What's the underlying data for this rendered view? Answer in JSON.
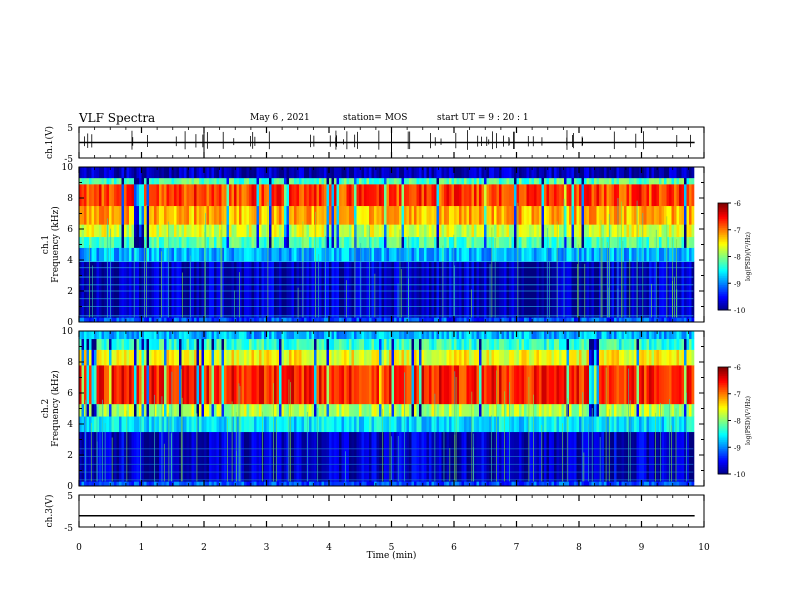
{
  "header": {
    "title": "VLF Spectra",
    "date": "May 6 , 2021",
    "station": "station= MOS",
    "start": "start UT = 9 : 20 : 1"
  },
  "chart_data": [
    {
      "type": "line",
      "name": "ch1-voltage",
      "ylabel": "ch.1(V)",
      "ylim": [
        -5,
        5
      ],
      "yticks": [
        "5",
        "-5"
      ],
      "x": [
        0,
        10
      ],
      "y": [
        0,
        0
      ],
      "color": "#000000"
    },
    {
      "type": "heatmap",
      "name": "ch1-spectrogram",
      "ylabel": "ch.1\nFrequency (kHz)",
      "ylim": [
        0,
        10
      ],
      "yticks": [
        "0",
        "2",
        "4",
        "6",
        "8",
        "10"
      ],
      "xlim": [
        0,
        10
      ],
      "x_end": 9.83,
      "bands": [
        {
          "f0": 0.0,
          "f1": 0.3,
          "level": 0.2
        },
        {
          "f0": 0.3,
          "f1": 3.9,
          "level": 0.06
        },
        {
          "f0": 3.9,
          "f1": 4.8,
          "level": 0.3
        },
        {
          "f0": 4.8,
          "f1": 5.5,
          "level": 0.45
        },
        {
          "f0": 5.5,
          "f1": 6.3,
          "level": 0.58
        },
        {
          "f0": 6.3,
          "f1": 7.5,
          "level": 0.7
        },
        {
          "f0": 7.5,
          "f1": 8.9,
          "level": 0.82
        },
        {
          "f0": 8.9,
          "f1": 9.3,
          "level": 0.45
        },
        {
          "f0": 9.3,
          "f1": 10.0,
          "level": 0.05
        }
      ],
      "colorbar": {
        "min": -10,
        "max": -6,
        "ticks": [
          "-6",
          "-7",
          "-8",
          "-9",
          "-10"
        ],
        "label": "log(PSD)(V²/Hz)"
      }
    },
    {
      "type": "heatmap",
      "name": "ch2-spectrogram",
      "ylabel": "ch.2\nFrequency (kHz)",
      "ylim": [
        0,
        10
      ],
      "yticks": [
        "0",
        "2",
        "4",
        "6",
        "8",
        "10"
      ],
      "xlim": [
        0,
        10
      ],
      "x_end": 9.83,
      "bands": [
        {
          "f0": 0.0,
          "f1": 0.3,
          "level": 0.2
        },
        {
          "f0": 0.3,
          "f1": 3.5,
          "level": 0.07
        },
        {
          "f0": 3.5,
          "f1": 4.5,
          "level": 0.35
        },
        {
          "f0": 4.5,
          "f1": 5.3,
          "level": 0.55
        },
        {
          "f0": 5.3,
          "f1": 7.8,
          "level": 0.85
        },
        {
          "f0": 7.8,
          "f1": 8.8,
          "level": 0.62
        },
        {
          "f0": 8.8,
          "f1": 9.5,
          "level": 0.42
        },
        {
          "f0": 9.5,
          "f1": 10.0,
          "level": 0.3
        }
      ],
      "colorbar": {
        "min": -10,
        "max": -6,
        "ticks": [
          "-6",
          "-7",
          "-8",
          "-9",
          "-10"
        ],
        "label": "log(PSD)(V²/Hz)"
      }
    },
    {
      "type": "line",
      "name": "ch3-voltage",
      "ylabel": "ch.3(V)",
      "ylim": [
        -5,
        5
      ],
      "yticks": [
        "5",
        "-5"
      ],
      "x": [
        0,
        10
      ],
      "y": [
        -1.5,
        -1.5
      ],
      "color": "#000000"
    }
  ],
  "xaxis": {
    "label": "Time (min)",
    "ticks": [
      "0",
      "1",
      "2",
      "3",
      "4",
      "5",
      "6",
      "7",
      "8",
      "9",
      "10"
    ],
    "range": [
      0,
      10
    ]
  }
}
